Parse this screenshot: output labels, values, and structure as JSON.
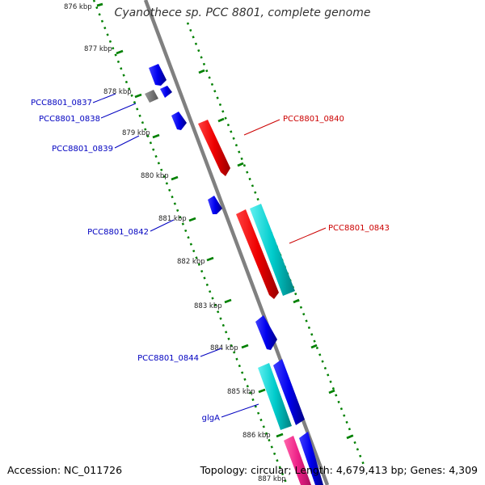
{
  "title": "Cyanothece sp. PCC 8801, complete genome",
  "footer": {
    "accession": "Accession: NC_011726",
    "summary": "Topology: circular; Length: 4,679,413 bp; Genes: 4,309"
  },
  "colors": {
    "backbone": "#7f7f7f",
    "tick": "#008000",
    "plus_strand_cds": "#0000ee",
    "minus_strand_cds": "#ee0000",
    "rna": "#00cccc",
    "pseudo": "#707070",
    "highlight": "#ee2288",
    "label_blue": "#0000c0",
    "label_red": "#cc0000"
  },
  "tick_labels": [
    "876 kbp",
    "877 kbp",
    "878 kbp",
    "879 kbp",
    "880 kbp",
    "881 kbp",
    "882 kbp",
    "883 kbp",
    "884 kbp",
    "885 kbp",
    "886 kbp",
    "887 kbp"
  ],
  "gene_labels": [
    {
      "name": "PCC8801_0837",
      "color": "blue"
    },
    {
      "name": "PCC8801_0838",
      "color": "blue"
    },
    {
      "name": "PCC8801_0839",
      "color": "blue"
    },
    {
      "name": "PCC8801_0840",
      "color": "red"
    },
    {
      "name": "PCC8801_0842",
      "color": "blue"
    },
    {
      "name": "PCC8801_0843",
      "color": "red"
    },
    {
      "name": "PCC8801_0844",
      "color": "blue"
    },
    {
      "name": "glgA",
      "color": "blue"
    }
  ]
}
